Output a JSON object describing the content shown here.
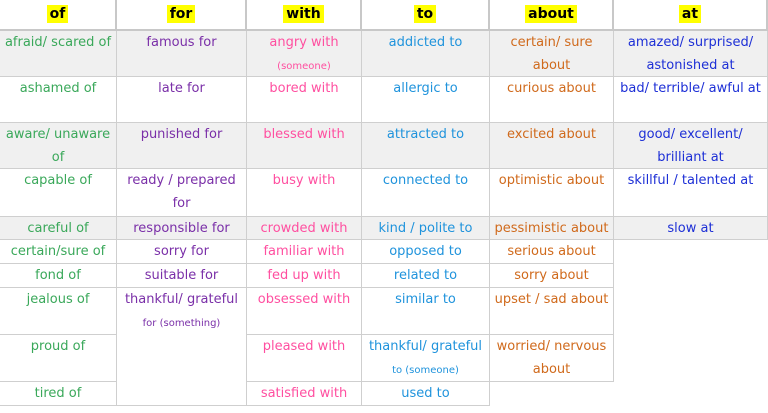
{
  "colors": {
    "highlight": "#ffff00",
    "row_shade": "#f0f0f0",
    "columns": [
      "#3aa85a",
      "#7a2fa8",
      "#ff4fa0",
      "#1f93dc",
      "#d06a1c",
      "#1d2fd6"
    ]
  },
  "headers": [
    "of",
    "for",
    "with",
    "to",
    "about",
    "at"
  ],
  "rows": [
    [
      {
        "text": "afraid/ scared of"
      },
      {
        "text": "famous for"
      },
      {
        "text": "angry with",
        "note": "(someone)"
      },
      {
        "text": "addicted to"
      },
      {
        "text": "certain/ sure about"
      },
      {
        "text": "amazed/ surprised/ astonished at"
      }
    ],
    [
      {
        "text": "ashamed of"
      },
      {
        "text": "late for"
      },
      {
        "text": "bored with"
      },
      {
        "text": "allergic to"
      },
      {
        "text": "curious about"
      },
      {
        "text": "bad/ terrible/ awful at"
      }
    ],
    [
      {
        "text": "aware/ unaware of"
      },
      {
        "text": "punished for"
      },
      {
        "text": "blessed with"
      },
      {
        "text": "attracted to"
      },
      {
        "text": "excited about"
      },
      {
        "text": "good/ excellent/ brilliant at"
      }
    ],
    [
      {
        "text": "capable of"
      },
      {
        "text": "ready / prepared for"
      },
      {
        "text": "busy with"
      },
      {
        "text": "connected to"
      },
      {
        "text": "optimistic about"
      },
      {
        "text": "skillful / talented at"
      }
    ],
    [
      {
        "text": "careful of"
      },
      {
        "text": "responsible for"
      },
      {
        "text": "crowded with"
      },
      {
        "text": "kind / polite to"
      },
      {
        "text": "pessimistic about"
      },
      {
        "text": "slow at"
      }
    ],
    [
      {
        "text": "certain/sure of"
      },
      {
        "text": "sorry for"
      },
      {
        "text": "familiar with"
      },
      {
        "text": "opposed to"
      },
      {
        "text": "serious about"
      },
      null
    ],
    [
      {
        "text": "fond of"
      },
      {
        "text": "suitable for"
      },
      {
        "text": "fed up with"
      },
      {
        "text": "related to"
      },
      {
        "text": "sorry about"
      },
      null
    ],
    [
      {
        "text": "jealous of"
      },
      {
        "text": "thankful/ grateful",
        "note": "for (something)"
      },
      {
        "text": "obsessed with"
      },
      {
        "text": "similar to"
      },
      {
        "text": "upset / sad about"
      },
      null
    ],
    [
      {
        "text": "proud of"
      },
      null,
      {
        "text": "pleased with"
      },
      {
        "text": "thankful/ grateful",
        "note": "to (someone)"
      },
      {
        "text": "worried/ nervous about"
      },
      null
    ],
    [
      {
        "text": "tired of"
      },
      null,
      {
        "text": "satisfied with"
      },
      {
        "text": "used to"
      },
      null,
      null
    ]
  ]
}
